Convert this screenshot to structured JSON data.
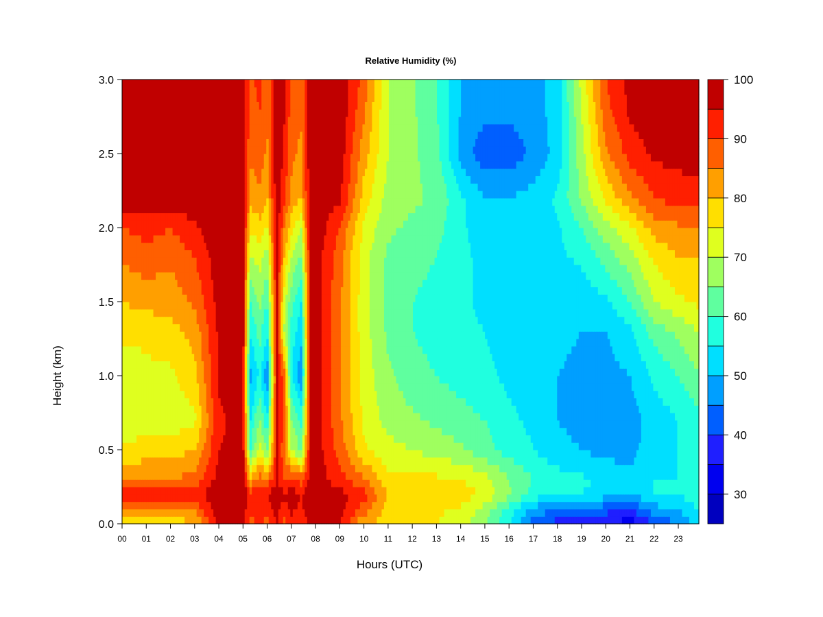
{
  "chart_data": {
    "type": "heatmap",
    "title": "Relative Humidity (%)",
    "xlabel": "Hours (UTC)",
    "ylabel": "Height (km)",
    "x_tick_labels": [
      "00",
      "01",
      "02",
      "03",
      "04",
      "05",
      "06",
      "07",
      "08",
      "09",
      "10",
      "11",
      "12",
      "13",
      "14",
      "15",
      "16",
      "17",
      "18",
      "19",
      "20",
      "21",
      "22",
      "23"
    ],
    "y_ticks": [
      0.0,
      0.5,
      1.0,
      1.5,
      2.0,
      2.5,
      3.0
    ],
    "y_tick_labels": [
      "0.0",
      "0.5",
      "1.0",
      "1.5",
      "2.0",
      "2.5",
      "3.0"
    ],
    "xlim": [
      0,
      23.85
    ],
    "ylim": [
      0,
      3.0
    ],
    "colorbar": {
      "levels": [
        25,
        30,
        35,
        40,
        45,
        50,
        55,
        60,
        65,
        70,
        75,
        80,
        85,
        90,
        95,
        100
      ],
      "colors": [
        "#00008f",
        "#0000bf",
        "#0000ef",
        "#1f1fff",
        "#005fff",
        "#009fff",
        "#00dfff",
        "#20ffdf",
        "#5fff9f",
        "#9fff5f",
        "#dfff1f",
        "#ffdf00",
        "#ff9f00",
        "#ff5f00",
        "#ff1f00",
        "#c00000",
        "#800000"
      ],
      "tick_values": [
        30,
        40,
        50,
        60,
        70,
        80,
        90,
        100
      ],
      "tick_labels": [
        "30",
        "40",
        "50",
        "60",
        "70",
        "80",
        "90",
        "100"
      ]
    },
    "heights_km": [
      0.0,
      0.1,
      0.2,
      0.3,
      0.5,
      0.7,
      1.0,
      1.3,
      1.5,
      1.8,
      2.0,
      2.2,
      2.5,
      2.8,
      3.0
    ],
    "hours": [
      0,
      1,
      2,
      3,
      4,
      5,
      5.3,
      5.7,
      6,
      6.4,
      6.7,
      7,
      7.4,
      7.8,
      8,
      9,
      10,
      11,
      12,
      13,
      14,
      15,
      16,
      17,
      18,
      19,
      20,
      21,
      22,
      23,
      23.8
    ],
    "values": [
      [
        72,
        72,
        76,
        80,
        96,
        96,
        88,
        90,
        88,
        96,
        88,
        94,
        92,
        97,
        97,
        95,
        80,
        78,
        78,
        75,
        72,
        65,
        55,
        42,
        38,
        38,
        35,
        32,
        40,
        45,
        52
      ],
      [
        84,
        85,
        85,
        86,
        98,
        98,
        92,
        94,
        92,
        97,
        92,
        96,
        94,
        98,
        98,
        97,
        88,
        78,
        78,
        76,
        74,
        68,
        58,
        48,
        45,
        45,
        42,
        40,
        48,
        50,
        55
      ],
      [
        92,
        92,
        92,
        93,
        99,
        99,
        92,
        95,
        95,
        98,
        96,
        97,
        95,
        99,
        99,
        97,
        92,
        80,
        80,
        78,
        78,
        74,
        66,
        58,
        55,
        55,
        52,
        50,
        55,
        55,
        58
      ],
      [
        84,
        84,
        85,
        87,
        97,
        98,
        82,
        88,
        86,
        96,
        90,
        92,
        88,
        98,
        98,
        92,
        86,
        76,
        76,
        76,
        75,
        72,
        65,
        60,
        57,
        56,
        54,
        52,
        55,
        55,
        56
      ],
      [
        76,
        78,
        78,
        80,
        95,
        97,
        60,
        72,
        64,
        96,
        86,
        70,
        64,
        98,
        98,
        88,
        76,
        72,
        70,
        68,
        66,
        62,
        58,
        55,
        52,
        50,
        48,
        48,
        53,
        55,
        56
      ],
      [
        70,
        72,
        72,
        74,
        94,
        97,
        55,
        66,
        56,
        96,
        90,
        66,
        58,
        98,
        98,
        86,
        74,
        68,
        66,
        64,
        62,
        60,
        56,
        54,
        50,
        48,
        46,
        48,
        52,
        55,
        58
      ],
      [
        72,
        74,
        74,
        78,
        96,
        97,
        48,
        56,
        46,
        96,
        88,
        55,
        46,
        98,
        98,
        86,
        73,
        66,
        62,
        60,
        58,
        56,
        54,
        52,
        50,
        48,
        48,
        50,
        56,
        60,
        64
      ],
      [
        76,
        76,
        78,
        82,
        96,
        98,
        56,
        62,
        55,
        97,
        70,
        58,
        52,
        98,
        98,
        86,
        72,
        64,
        60,
        58,
        56,
        55,
        53,
        52,
        52,
        50,
        50,
        54,
        62,
        66,
        70
      ],
      [
        80,
        82,
        82,
        86,
        97,
        98,
        60,
        66,
        60,
        97,
        72,
        62,
        55,
        98,
        98,
        86,
        72,
        64,
        60,
        58,
        56,
        54,
        52,
        52,
        52,
        52,
        54,
        60,
        70,
        74,
        76
      ],
      [
        86,
        88,
        86,
        90,
        98,
        98,
        70,
        72,
        68,
        98,
        80,
        70,
        64,
        98,
        98,
        87,
        72,
        64,
        62,
        60,
        56,
        54,
        52,
        52,
        54,
        56,
        62,
        68,
        76,
        80,
        80
      ],
      [
        90,
        92,
        90,
        94,
        99,
        99,
        76,
        78,
        74,
        98,
        86,
        76,
        70,
        99,
        99,
        90,
        74,
        66,
        64,
        62,
        56,
        52,
        52,
        52,
        54,
        60,
        68,
        74,
        82,
        84,
        84
      ],
      [
        98,
        98,
        98,
        99,
        99,
        99,
        82,
        84,
        80,
        99,
        92,
        84,
        80,
        99,
        99,
        96,
        78,
        68,
        66,
        64,
        56,
        50,
        50,
        52,
        56,
        66,
        76,
        84,
        90,
        92,
        92
      ],
      [
        99,
        99,
        99,
        99,
        99,
        99,
        86,
        88,
        84,
        99,
        94,
        86,
        84,
        99,
        99,
        98,
        82,
        70,
        66,
        62,
        48,
        42,
        42,
        46,
        52,
        68,
        84,
        92,
        96,
        97,
        98
      ],
      [
        99,
        99,
        99,
        99,
        99,
        99,
        88,
        90,
        86,
        99,
        96,
        88,
        86,
        99,
        99,
        99,
        86,
        70,
        66,
        60,
        50,
        46,
        46,
        48,
        52,
        70,
        88,
        96,
        99,
        99,
        99
      ],
      [
        99,
        99,
        99,
        99,
        99,
        99,
        88,
        92,
        86,
        99,
        96,
        88,
        86,
        99,
        99,
        99,
        88,
        70,
        66,
        60,
        50,
        46,
        46,
        48,
        52,
        72,
        90,
        97,
        99,
        99,
        99
      ]
    ]
  }
}
